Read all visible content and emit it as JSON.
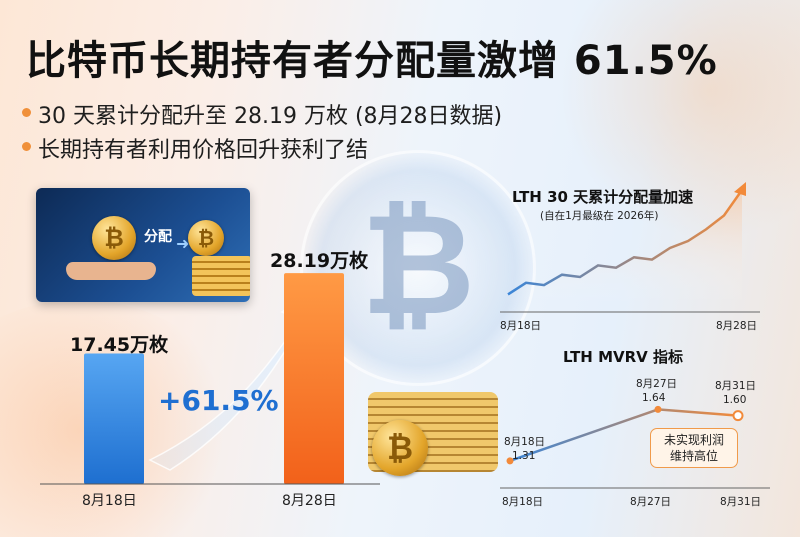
{
  "headline": "比特币长期持有者分配量激增 61.5%",
  "bullets": [
    "30 天累计分配升至 28.19 万枚 (8月28日数据)",
    "长期持有者利用价格回升获利了结"
  ],
  "illustration": {
    "label": "分配"
  },
  "icons": {
    "btc_symbol": "₿",
    "arrow": "➜",
    "names": [
      "bitcoin-coin-icon",
      "hand-icon",
      "coin-stack-icon",
      "arrow-right-icon",
      "growth-arrow-icon"
    ]
  },
  "colors": {
    "blue_bar": "#1e6fd0",
    "orange_bar": "#f2611a",
    "accent_orange": "#f0903a",
    "accent_blue": "#1f6fd1"
  },
  "chart_data": [
    {
      "type": "bar",
      "categories": [
        "8月18日",
        "8月28日"
      ],
      "values": [
        17.45,
        28.19
      ],
      "labels": [
        "17.45万枚",
        "28.19万枚"
      ],
      "unit": "万枚",
      "annotation": "+61.5%",
      "ylim": [
        0,
        30
      ]
    },
    {
      "type": "line",
      "title": "LTH 30 天累计分配量加速",
      "subtitle": "(自在1月最级在 2026年)",
      "x_ticks": [
        "8月18日",
        "8月28日"
      ],
      "values": [
        0.1,
        0.2,
        0.18,
        0.27,
        0.25,
        0.35,
        0.33,
        0.42,
        0.4,
        0.5,
        0.56,
        0.66,
        0.78,
        1.0
      ],
      "note": "relative trend, axis unlabeled"
    },
    {
      "type": "line",
      "title": "LTH MVRV 指标",
      "x": [
        "8月18日",
        "8月27日",
        "8月31日"
      ],
      "x_ticks": [
        "8月18日",
        "8月27日",
        "8月31日"
      ],
      "values": [
        1.31,
        1.64,
        1.6
      ],
      "point_labels": [
        {
          "date": "8月18日",
          "value": "1.31"
        },
        {
          "date": "8月27日",
          "value": "1.64"
        },
        {
          "date": "8月31日",
          "value": "1.60"
        }
      ],
      "ylim": [
        1.2,
        1.7
      ],
      "annotation": [
        "未实现利润",
        "维持高位"
      ]
    }
  ]
}
